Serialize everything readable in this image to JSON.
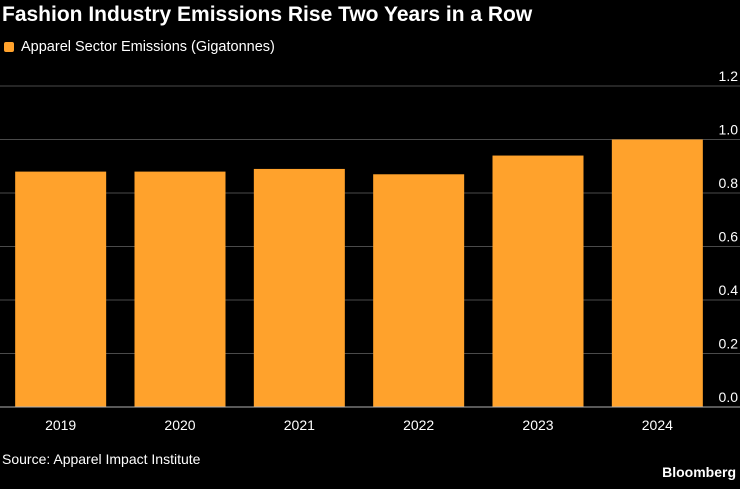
{
  "title": "Fashion Industry Emissions Rise Two Years in a Row",
  "source": "Source: Apparel Impact Institute",
  "brand": "Bloomberg",
  "colors": {
    "bar": "#ffa22c",
    "background": "#000000",
    "grid": "#4a4a4a",
    "text": "#ffffff"
  },
  "chart_data": {
    "type": "bar",
    "categories": [
      "2019",
      "2020",
      "2021",
      "2022",
      "2023",
      "2024"
    ],
    "series": [
      {
        "name": "Apparel Sector Emissions (Gigatonnes)",
        "values": [
          0.88,
          0.88,
          0.89,
          0.87,
          0.94,
          1.0
        ]
      }
    ],
    "ylim": [
      0,
      1.2
    ],
    "yticks": [
      "0.0",
      "0.2",
      "0.4",
      "0.6",
      "0.8",
      "1.0",
      "1.2"
    ],
    "ytick_values": [
      0,
      0.2,
      0.4,
      0.6,
      0.8,
      1.0,
      1.2
    ],
    "y_axis_side": "right",
    "grid": true,
    "legend_position": "top-left"
  }
}
